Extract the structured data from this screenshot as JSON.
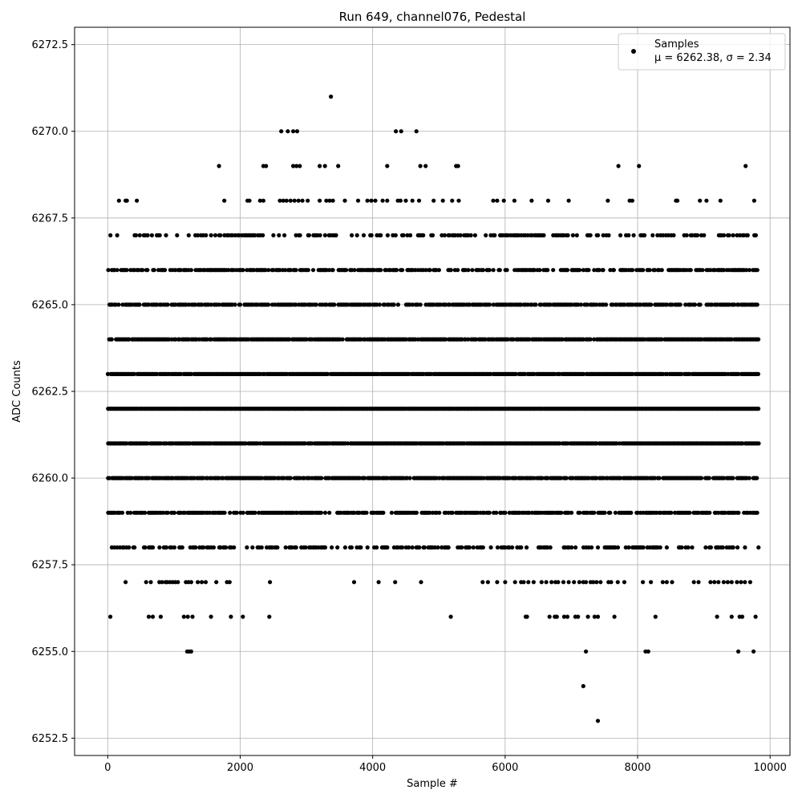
{
  "chart_data": {
    "type": "scatter",
    "title": "Run 649, channel076, Pedestal",
    "xlabel": "Sample #",
    "ylabel": "ADC Counts",
    "xlim": [
      -500,
      10300
    ],
    "ylim": [
      6252,
      6273
    ],
    "xticks": [
      0,
      2000,
      4000,
      6000,
      8000,
      10000
    ],
    "xtick_labels": [
      "0",
      "2000",
      "4000",
      "6000",
      "8000",
      "10000"
    ],
    "yticks": [
      6252.5,
      6255.0,
      6257.5,
      6260.0,
      6262.5,
      6265.0,
      6267.5,
      6270.0,
      6272.5
    ],
    "ytick_labels": [
      "6252.5",
      "6255.0",
      "6257.5",
      "6260.0",
      "6262.5",
      "6265.0",
      "6267.5",
      "6270.0",
      "6272.5"
    ],
    "grid": true,
    "legend_position": "top-right",
    "marker_color": "#000000",
    "series": [
      {
        "name": "Samples",
        "stats_label": "μ = 6262.38, σ = 2.34",
        "dense_levels": [
          {
            "y": 6258,
            "x_range": [
              0,
              9820
            ],
            "density": 0.45
          },
          {
            "y": 6259,
            "x_range": [
              0,
              9820
            ],
            "density": 0.7
          },
          {
            "y": 6260,
            "x_range": [
              0,
              9820
            ],
            "density": 0.85
          },
          {
            "y": 6261,
            "x_range": [
              0,
              9820
            ],
            "density": 0.95
          },
          {
            "y": 6262,
            "x_range": [
              0,
              9820
            ],
            "density": 1.0
          },
          {
            "y": 6263,
            "x_range": [
              0,
              9820
            ],
            "density": 0.95
          },
          {
            "y": 6264,
            "x_range": [
              0,
              9820
            ],
            "density": 0.9
          },
          {
            "y": 6265,
            "x_range": [
              0,
              9820
            ],
            "density": 0.75
          },
          {
            "y": 6266,
            "x_range": [
              0,
              9820
            ],
            "density": 0.6
          },
          {
            "y": 6267,
            "x_range": [
              0,
              9820
            ],
            "density": 0.35
          }
        ],
        "points": [
          {
            "x": 3370,
            "y": 6271
          },
          {
            "x": 2620,
            "y": 6270
          },
          {
            "x": 2720,
            "y": 6270
          },
          {
            "x": 2800,
            "y": 6270
          },
          {
            "x": 2860,
            "y": 6270
          },
          {
            "x": 4350,
            "y": 6270
          },
          {
            "x": 4430,
            "y": 6270
          },
          {
            "x": 4660,
            "y": 6270
          },
          {
            "x": 1680,
            "y": 6269
          },
          {
            "x": 2350,
            "y": 6269
          },
          {
            "x": 2390,
            "y": 6269
          },
          {
            "x": 2800,
            "y": 6269
          },
          {
            "x": 2850,
            "y": 6269
          },
          {
            "x": 2900,
            "y": 6269
          },
          {
            "x": 3200,
            "y": 6269
          },
          {
            "x": 3280,
            "y": 6269
          },
          {
            "x": 3480,
            "y": 6269
          },
          {
            "x": 4220,
            "y": 6269
          },
          {
            "x": 4720,
            "y": 6269
          },
          {
            "x": 4800,
            "y": 6269
          },
          {
            "x": 5260,
            "y": 6269
          },
          {
            "x": 5290,
            "y": 6269
          },
          {
            "x": 7710,
            "y": 6269
          },
          {
            "x": 8020,
            "y": 6269
          },
          {
            "x": 9630,
            "y": 6269
          },
          {
            "x": 170,
            "y": 6268
          },
          {
            "x": 270,
            "y": 6268
          },
          {
            "x": 290,
            "y": 6268
          },
          {
            "x": 440,
            "y": 6268
          },
          {
            "x": 1760,
            "y": 6268
          },
          {
            "x": 2110,
            "y": 6268
          },
          {
            "x": 2140,
            "y": 6268
          },
          {
            "x": 2300,
            "y": 6268
          },
          {
            "x": 2350,
            "y": 6268
          },
          {
            "x": 2600,
            "y": 6268
          },
          {
            "x": 2650,
            "y": 6268
          },
          {
            "x": 2700,
            "y": 6268
          },
          {
            "x": 2760,
            "y": 6268
          },
          {
            "x": 2820,
            "y": 6268
          },
          {
            "x": 2880,
            "y": 6268
          },
          {
            "x": 2940,
            "y": 6268
          },
          {
            "x": 3020,
            "y": 6268
          },
          {
            "x": 3200,
            "y": 6268
          },
          {
            "x": 3300,
            "y": 6268
          },
          {
            "x": 3350,
            "y": 6268
          },
          {
            "x": 3400,
            "y": 6268
          },
          {
            "x": 3580,
            "y": 6268
          },
          {
            "x": 3780,
            "y": 6268
          },
          {
            "x": 3920,
            "y": 6268
          },
          {
            "x": 3980,
            "y": 6268
          },
          {
            "x": 4040,
            "y": 6268
          },
          {
            "x": 4150,
            "y": 6268
          },
          {
            "x": 4220,
            "y": 6268
          },
          {
            "x": 4380,
            "y": 6268
          },
          {
            "x": 4420,
            "y": 6268
          },
          {
            "x": 4500,
            "y": 6268
          },
          {
            "x": 4600,
            "y": 6268
          },
          {
            "x": 4700,
            "y": 6268
          },
          {
            "x": 4920,
            "y": 6268
          },
          {
            "x": 5060,
            "y": 6268
          },
          {
            "x": 5200,
            "y": 6268
          },
          {
            "x": 5300,
            "y": 6268
          },
          {
            "x": 5820,
            "y": 6268
          },
          {
            "x": 5880,
            "y": 6268
          },
          {
            "x": 5980,
            "y": 6268
          },
          {
            "x": 6140,
            "y": 6268
          },
          {
            "x": 6400,
            "y": 6268
          },
          {
            "x": 6650,
            "y": 6268
          },
          {
            "x": 6960,
            "y": 6268
          },
          {
            "x": 7550,
            "y": 6268
          },
          {
            "x": 7880,
            "y": 6268
          },
          {
            "x": 7920,
            "y": 6268
          },
          {
            "x": 8580,
            "y": 6268
          },
          {
            "x": 8600,
            "y": 6268
          },
          {
            "x": 8940,
            "y": 6268
          },
          {
            "x": 9040,
            "y": 6268
          },
          {
            "x": 9250,
            "y": 6268
          },
          {
            "x": 9760,
            "y": 6268
          },
          {
            "x": 40,
            "y": 6256
          },
          {
            "x": 620,
            "y": 6256
          },
          {
            "x": 680,
            "y": 6256
          },
          {
            "x": 800,
            "y": 6256
          },
          {
            "x": 1150,
            "y": 6256
          },
          {
            "x": 1210,
            "y": 6256
          },
          {
            "x": 1280,
            "y": 6256
          },
          {
            "x": 1560,
            "y": 6256
          },
          {
            "x": 1860,
            "y": 6256
          },
          {
            "x": 2040,
            "y": 6256
          },
          {
            "x": 2440,
            "y": 6256
          },
          {
            "x": 5180,
            "y": 6256
          },
          {
            "x": 6310,
            "y": 6256
          },
          {
            "x": 6330,
            "y": 6256
          },
          {
            "x": 6670,
            "y": 6256
          },
          {
            "x": 6750,
            "y": 6256
          },
          {
            "x": 6780,
            "y": 6256
          },
          {
            "x": 6890,
            "y": 6256
          },
          {
            "x": 6940,
            "y": 6256
          },
          {
            "x": 7060,
            "y": 6256
          },
          {
            "x": 7100,
            "y": 6256
          },
          {
            "x": 7250,
            "y": 6256
          },
          {
            "x": 7350,
            "y": 6256
          },
          {
            "x": 7400,
            "y": 6256
          },
          {
            "x": 7650,
            "y": 6256
          },
          {
            "x": 8270,
            "y": 6256
          },
          {
            "x": 9200,
            "y": 6256
          },
          {
            "x": 9420,
            "y": 6256
          },
          {
            "x": 9540,
            "y": 6256
          },
          {
            "x": 9580,
            "y": 6256
          },
          {
            "x": 9780,
            "y": 6256
          },
          {
            "x": 1200,
            "y": 6255
          },
          {
            "x": 1230,
            "y": 6255
          },
          {
            "x": 1260,
            "y": 6255
          },
          {
            "x": 7220,
            "y": 6255
          },
          {
            "x": 8120,
            "y": 6255
          },
          {
            "x": 8160,
            "y": 6255
          },
          {
            "x": 9520,
            "y": 6255
          },
          {
            "x": 9750,
            "y": 6255
          },
          {
            "x": 7180,
            "y": 6254
          },
          {
            "x": 7400,
            "y": 6253
          }
        ],
        "sparse_level_6257": [
          270,
          580,
          650,
          780,
          820,
          870,
          900,
          940,
          980,
          1020,
          1060,
          1180,
          1220,
          1260,
          1360,
          1420,
          1480,
          1640,
          1800,
          1840,
          2450,
          3720,
          4090,
          4340,
          4730,
          5660,
          5740,
          5880,
          6000,
          6150,
          6240,
          6280,
          6350,
          6430,
          6550,
          6620,
          6700,
          6760,
          6800,
          6880,
          6960,
          7040,
          7120,
          7180,
          7220,
          7290,
          7330,
          7380,
          7440,
          7560,
          7600,
          7700,
          7800,
          8080,
          8200,
          8380,
          8440,
          8520,
          8850,
          8920,
          9100,
          9160,
          9220,
          9300,
          9360,
          9420,
          9500,
          9560,
          9620,
          9700
        ]
      }
    ]
  }
}
